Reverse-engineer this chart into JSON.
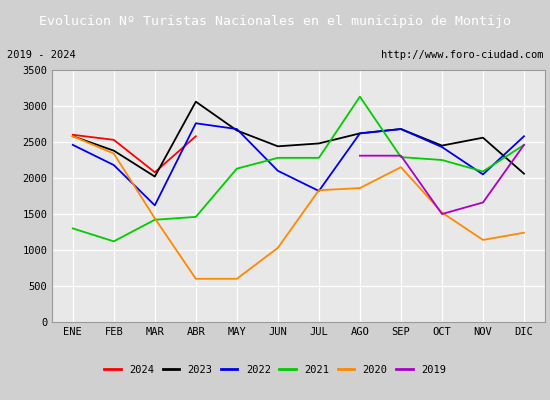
{
  "title": "Evolucion Nº Turistas Nacionales en el municipio de Montijo",
  "subtitle_left": "2019 - 2024",
  "subtitle_right": "http://www.foro-ciudad.com",
  "title_bg_color": "#4f7ec8",
  "title_text_color": "#ffffff",
  "months": [
    "ENE",
    "FEB",
    "MAR",
    "ABR",
    "MAY",
    "JUN",
    "JUL",
    "AGO",
    "SEP",
    "OCT",
    "NOV",
    "DIC"
  ],
  "ylim": [
    0,
    3500
  ],
  "yticks": [
    0,
    500,
    1000,
    1500,
    2000,
    2500,
    3000,
    3500
  ],
  "series": {
    "2024": {
      "color": "#ff0000",
      "data": [
        2600,
        2530,
        2080,
        2580,
        null,
        null,
        null,
        null,
        null,
        null,
        null,
        null
      ]
    },
    "2023": {
      "color": "#000000",
      "data": [
        2580,
        2380,
        2020,
        3060,
        2660,
        2440,
        2480,
        2620,
        2680,
        2450,
        2560,
        2060
      ]
    },
    "2022": {
      "color": "#0000ee",
      "data": [
        2460,
        2180,
        1620,
        2760,
        2680,
        2100,
        1820,
        2620,
        2680,
        2430,
        2050,
        2580
      ]
    },
    "2021": {
      "color": "#00cc00",
      "data": [
        1300,
        1120,
        1420,
        1460,
        2130,
        2280,
        2280,
        3130,
        2290,
        2250,
        2090,
        2460
      ]
    },
    "2020": {
      "color": "#ff8800",
      "data": [
        2580,
        2340,
        1440,
        600,
        600,
        1030,
        1830,
        1860,
        2150,
        1520,
        1140,
        1240
      ]
    },
    "2019": {
      "color": "#aa00cc",
      "data": [
        null,
        null,
        null,
        null,
        null,
        null,
        null,
        2310,
        2310,
        1500,
        1660,
        2460
      ]
    }
  },
  "legend_order": [
    "2024",
    "2023",
    "2022",
    "2021",
    "2020",
    "2019"
  ],
  "outer_bg_color": "#d0d0d0",
  "inner_bg_color": "#e8e8e8",
  "plot_bg_color": "#e8e8e8",
  "grid_color": "#ffffff",
  "font_family": "monospace"
}
